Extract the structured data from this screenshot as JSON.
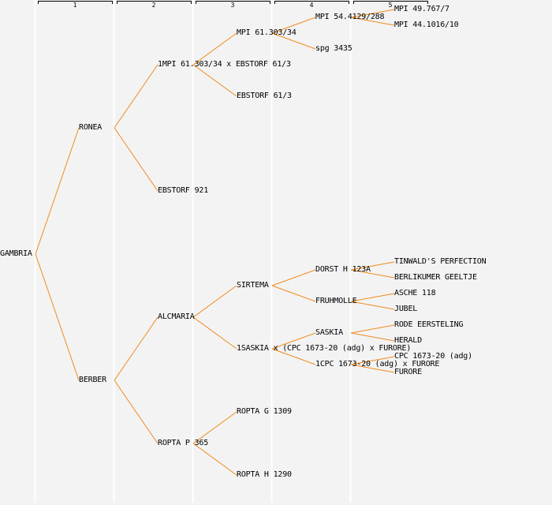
{
  "colors": {
    "background": "#f3f3f3",
    "separator": "#ffffff",
    "link": "#f08c1e",
    "text": "#000000"
  },
  "generations": [
    "1",
    "2",
    "3",
    "4",
    "5"
  ],
  "tree": {
    "label": "GAMBRIA",
    "children": [
      {
        "label": "RONEA",
        "children": [
          {
            "label": "1MPI 61.303/34 x EBSTORF 61/3",
            "children": [
              {
                "label": "MPI 61.303/34",
                "children": [
                  {
                    "label": "MPI 54.4129/288",
                    "children": [
                      {
                        "label": "MPI 49.767/7"
                      },
                      {
                        "label": "MPI 44.1016/10"
                      }
                    ]
                  },
                  {
                    "label": "spg 3435"
                  }
                ]
              },
              {
                "label": "EBSTORF 61/3"
              }
            ]
          },
          {
            "label": "EBSTORF 921"
          }
        ]
      },
      {
        "label": "BERBER",
        "children": [
          {
            "label": "ALCMARIA",
            "children": [
              {
                "label": "SIRTEMA",
                "children": [
                  {
                    "label": "DORST H 123A",
                    "children": [
                      {
                        "label": "TINWALD'S PERFECTION"
                      },
                      {
                        "label": "BERLIKUMER GEELTJE"
                      }
                    ]
                  },
                  {
                    "label": "FRUHMOLLE",
                    "children": [
                      {
                        "label": "ASCHE 118"
                      },
                      {
                        "label": "JUBEL"
                      }
                    ]
                  }
                ]
              },
              {
                "label": "1SASKIA x (CPC 1673-20 (adg) x FURORE)",
                "children": [
                  {
                    "label": "SASKIA",
                    "children": [
                      {
                        "label": "RODE EERSTELING"
                      },
                      {
                        "label": "HERALD"
                      }
                    ]
                  },
                  {
                    "label": "1CPC 1673-20 (adg) x FURORE",
                    "children": [
                      {
                        "label": "CPC 1673-20 (adg)"
                      },
                      {
                        "label": "FURORE"
                      }
                    ]
                  }
                ]
              }
            ]
          },
          {
            "label": "ROPTA P 365",
            "children": [
              {
                "label": "ROPTA G 1309"
              },
              {
                "label": "ROPTA H 1290"
              }
            ]
          }
        ]
      }
    ]
  }
}
